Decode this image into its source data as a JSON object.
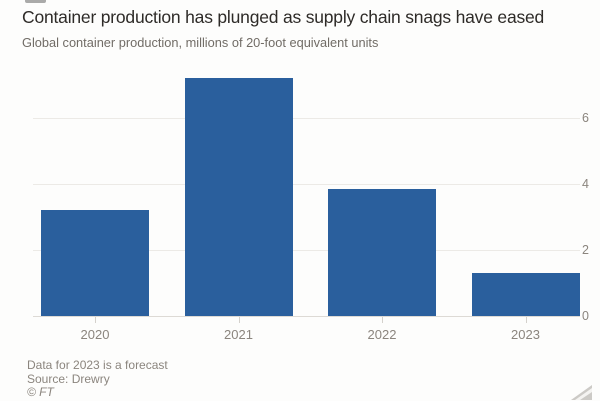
{
  "chart_data": {
    "type": "bar",
    "title": "Container production has plunged as supply chain snags have eased",
    "subtitle": "Global container production, millions of 20-foot equivalent units",
    "categories": [
      "2020",
      "2021",
      "2022",
      "2023"
    ],
    "values": [
      3.2,
      7.2,
      3.85,
      1.3
    ],
    "xlabel": "",
    "ylabel": "",
    "units": "millions of 20-foot equivalent units",
    "ylim": [
      0,
      7.45
    ],
    "yticks": [
      0,
      2,
      4,
      6
    ],
    "grid": true,
    "legend_position": "none",
    "axis_side": "right",
    "bar_color": "#2a5f9d",
    "background_color": "#fdfdfc"
  },
  "footer": {
    "note": "Data for 2023 is a forecast",
    "source": "Source: Drewry",
    "copyright": "© FT"
  }
}
